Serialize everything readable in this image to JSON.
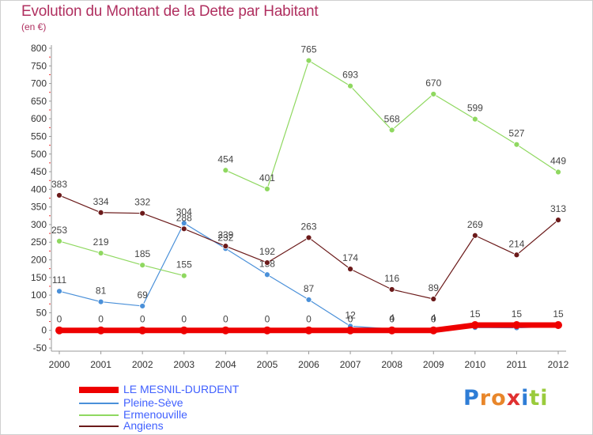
{
  "title": "Evolution du Montant de la Dette par Habitant",
  "unit": "(en €)",
  "logo": {
    "letters": [
      "P",
      "r",
      "o",
      "x",
      "i",
      "t",
      "i"
    ],
    "colors": [
      "#2e7dd6",
      "#e8862a",
      "#e8862a",
      "#e03030",
      "#2e7dd6",
      "#9acb3c",
      "#9acb3c"
    ]
  },
  "chart_data": {
    "type": "line",
    "x": [
      "2000",
      "2001",
      "2002",
      "2003",
      "2004",
      "2005",
      "2006",
      "2007",
      "2008",
      "2009",
      "2010",
      "2011",
      "2012"
    ],
    "ylim": [
      -50,
      800
    ],
    "yticks": [
      -50,
      0,
      50,
      100,
      150,
      200,
      250,
      300,
      350,
      400,
      450,
      500,
      550,
      600,
      650,
      700,
      750,
      800
    ],
    "grid": false,
    "legend_position": "bottom-left",
    "series": [
      {
        "name": "LE MESNIL-DURDENT",
        "color": "#ee0000",
        "values": [
          0,
          0,
          0,
          0,
          0,
          0,
          0,
          0,
          0,
          0,
          15,
          15,
          15
        ],
        "labels": [
          "0",
          "0",
          "0",
          "0",
          "0",
          "0",
          "0",
          "0",
          "0",
          "0",
          "15",
          "15",
          "15"
        ]
      },
      {
        "name": "Pleine-Sève",
        "color": "#4a90d9",
        "values": [
          111,
          81,
          69,
          304,
          232,
          158,
          87,
          12,
          4,
          4,
          8,
          7,
          11
        ],
        "labels": [
          "111",
          "81",
          "69",
          "304",
          "232",
          "158",
          "87",
          "12",
          "4",
          "4",
          "",
          "",
          ""
        ]
      },
      {
        "name": "Ermenouville",
        "color": "#8fd860",
        "values": [
          253,
          219,
          185,
          155,
          454,
          401,
          765,
          693,
          568,
          670,
          599,
          527,
          449
        ],
        "labels": [
          "253",
          "219",
          "185",
          "155",
          "454",
          "401",
          "765",
          "693",
          "568",
          "670",
          "599",
          "527",
          "449"
        ]
      },
      {
        "name": "Angiens",
        "color": "#6b1a1a",
        "values": [
          383,
          334,
          332,
          288,
          239,
          192,
          263,
          174,
          116,
          89,
          269,
          214,
          313
        ],
        "labels": [
          "383",
          "334",
          "332",
          "288",
          "239",
          "192",
          "263",
          "174",
          "116",
          "89",
          "269",
          "214",
          "313"
        ]
      }
    ]
  }
}
